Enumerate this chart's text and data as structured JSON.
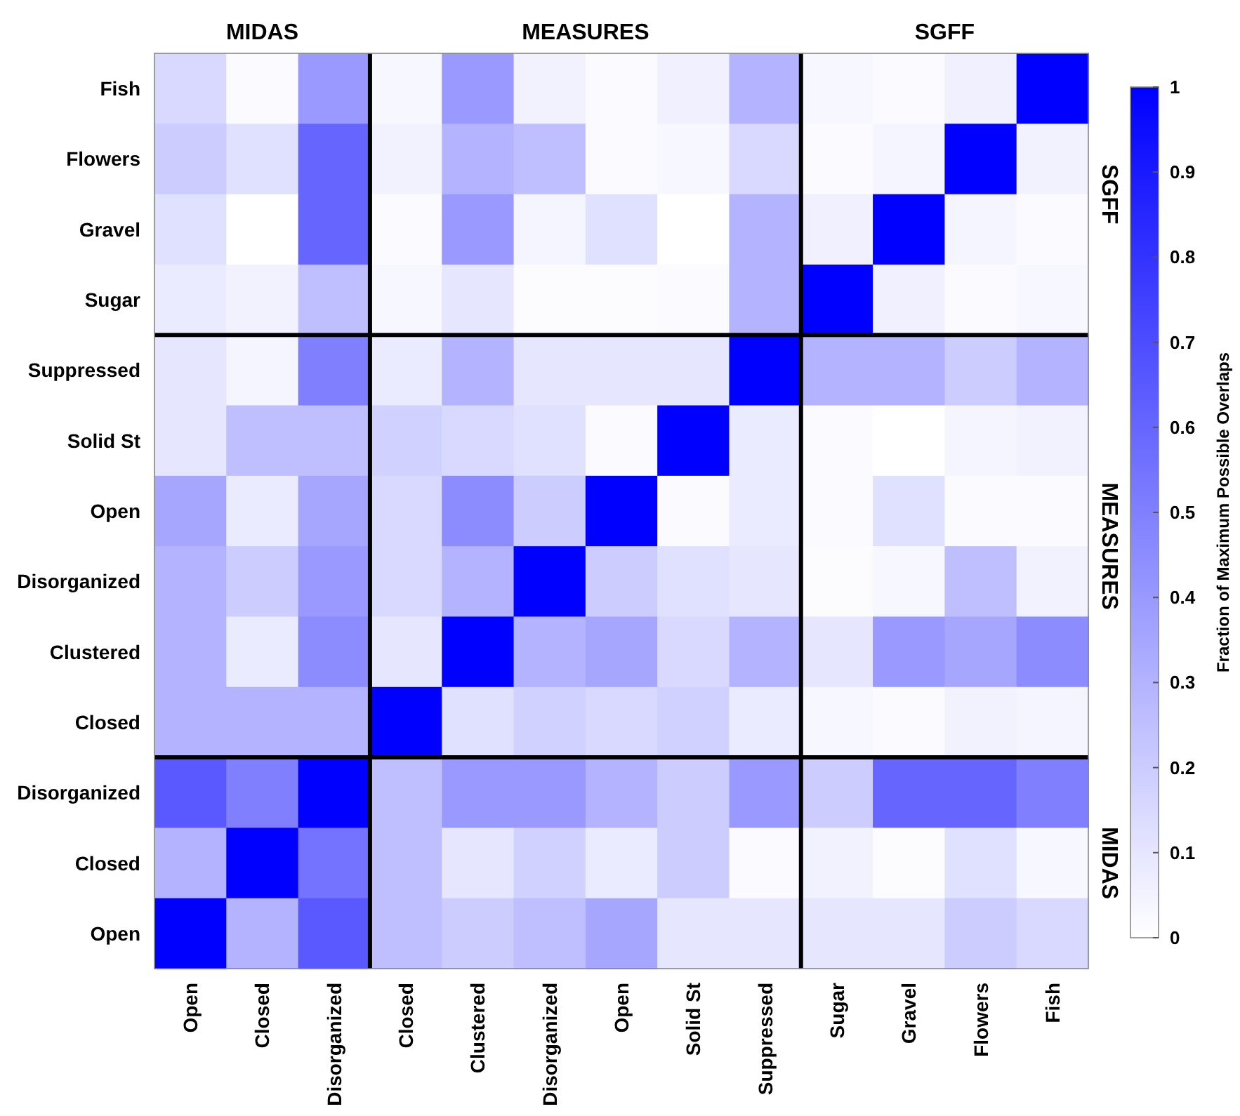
{
  "chart_data": {
    "type": "heatmap",
    "categories": [
      "Open",
      "Closed",
      "Disorganized",
      "Closed",
      "Clustered",
      "Disorganized",
      "Open",
      "Solid St",
      "Suppressed",
      "Sugar",
      "Gravel",
      "Flowers",
      "Fish"
    ],
    "y_categories": [
      "Fish",
      "Flowers",
      "Gravel",
      "Sugar",
      "Suppressed",
      "Solid St",
      "Open",
      "Disorganized",
      "Clustered",
      "Closed",
      "Disorganized",
      "Closed",
      "Open"
    ],
    "cells": [
      [
        0.15,
        0.02,
        0.4,
        0.03,
        0.4,
        0.05,
        0.02,
        0.06,
        0.3,
        0.03,
        0.02,
        0.06,
        1
      ],
      [
        0.2,
        0.12,
        0.6,
        0.05,
        0.3,
        0.25,
        0.02,
        0.03,
        0.15,
        0.02,
        0.04,
        1,
        0.05
      ],
      [
        0.12,
        0.0,
        0.6,
        0.02,
        0.4,
        0.04,
        0.12,
        0.0,
        0.3,
        0.06,
        1,
        0.04,
        0.02
      ],
      [
        0.08,
        0.05,
        0.25,
        0.03,
        0.1,
        0.01,
        0.01,
        0.02,
        0.3,
        1,
        0.06,
        0.02,
        0.03
      ],
      [
        0.1,
        0.04,
        0.5,
        0.08,
        0.3,
        0.1,
        0.1,
        0.1,
        1,
        0.3,
        0.3,
        0.2,
        0.3
      ],
      [
        0.1,
        0.25,
        0.25,
        0.18,
        0.15,
        0.12,
        0.02,
        1,
        0.08,
        0.02,
        0.0,
        0.04,
        0.05
      ],
      [
        0.35,
        0.08,
        0.35,
        0.15,
        0.45,
        0.2,
        1,
        0.02,
        0.08,
        0.02,
        0.12,
        0.02,
        0.02
      ],
      [
        0.3,
        0.2,
        0.4,
        0.15,
        0.3,
        1,
        0.2,
        0.12,
        0.1,
        0.01,
        0.03,
        0.25,
        0.05
      ],
      [
        0.3,
        0.08,
        0.45,
        0.1,
        1,
        0.3,
        0.35,
        0.15,
        0.3,
        0.1,
        0.4,
        0.35,
        0.45
      ],
      [
        0.3,
        0.3,
        0.3,
        1,
        0.12,
        0.18,
        0.15,
        0.18,
        0.08,
        0.03,
        0.02,
        0.05,
        0.04
      ],
      [
        0.65,
        0.5,
        1,
        0.25,
        0.4,
        0.4,
        0.3,
        0.2,
        0.4,
        0.2,
        0.6,
        0.6,
        0.5
      ],
      [
        0.3,
        1,
        0.55,
        0.25,
        0.1,
        0.18,
        0.08,
        0.2,
        0.02,
        0.05,
        0.01,
        0.12,
        0.03
      ],
      [
        1,
        0.3,
        0.65,
        0.25,
        0.2,
        0.25,
        0.35,
        0.1,
        0.1,
        0.1,
        0.1,
        0.2,
        0.15
      ]
    ],
    "colors": [
      "#ffffff",
      "#0000ff"
    ],
    "clim": [
      0,
      1
    ],
    "cticks": [
      0,
      0.1,
      0.2,
      0.3,
      0.4,
      0.5,
      0.6,
      0.7,
      0.8,
      0.9,
      1
    ],
    "clabel": "Fraction of Maximum Possible Overlaps",
    "annotations": [
      "MIDAS",
      "MEASURES",
      "SGFF",
      "SGFF",
      "MEASURES",
      "MIDAS"
    ]
  }
}
